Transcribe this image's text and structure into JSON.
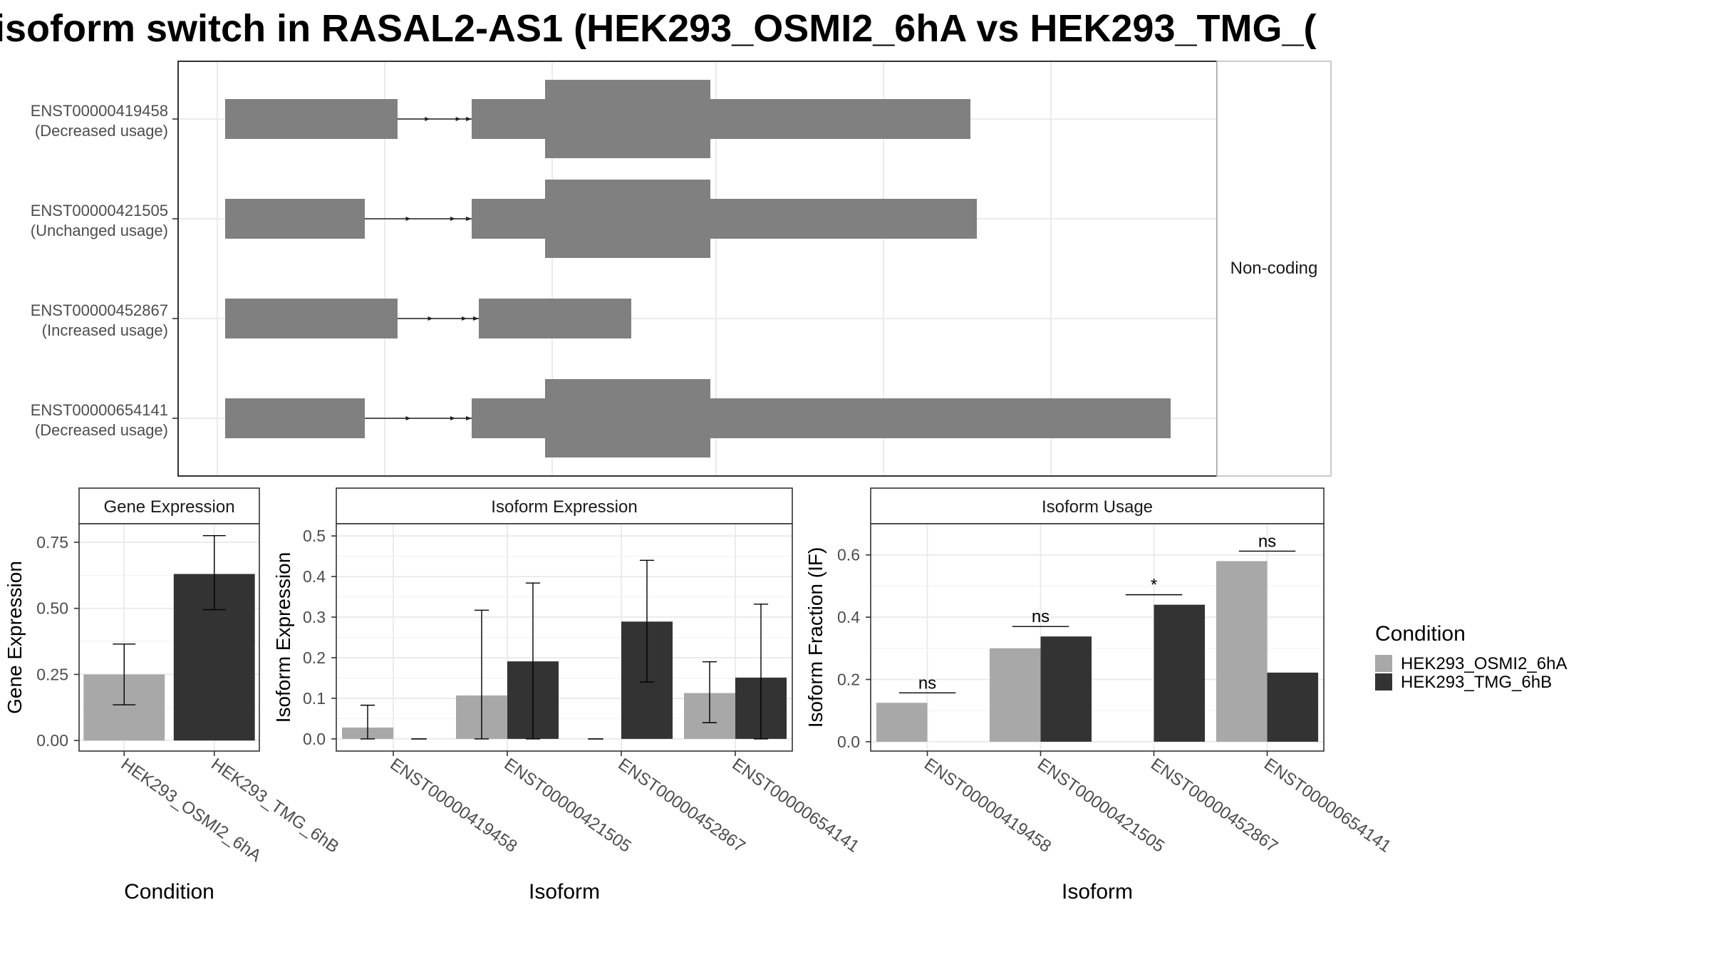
{
  "title": "isoform switch in RASAL2-AS1 (HEK293_OSMI2_6hA vs HEK293_TMG_(",
  "colors": {
    "condition_a": "#a8a8a8",
    "condition_b": "#333333",
    "transcript": "#808080",
    "grid": "#ebebeb",
    "panel_border": "#333333",
    "strip_bg": "#ffffff"
  },
  "chart_data": [
    {
      "type": "gene-structure",
      "transcripts": [
        {
          "id": "ENST00000419458",
          "usage": "(Decreased usage)"
        },
        {
          "id": "ENST00000421505",
          "usage": "(Unchanged usage)"
        },
        {
          "id": "ENST00000452867",
          "usage": "(Increased usage)"
        },
        {
          "id": "ENST00000654141",
          "usage": "(Decreased usage)"
        }
      ],
      "facet_label": "Non-coding"
    },
    {
      "type": "bar",
      "title": "Gene Expression",
      "xlabel": "Condition",
      "ylabel": "Gene Expression",
      "categories": [
        "HEK293_OSMI2_6hA",
        "HEK293_TMG_6hB"
      ],
      "values": [
        0.25,
        0.63
      ],
      "error_low": [
        0.135,
        0.495
      ],
      "error_high": [
        0.365,
        0.775
      ],
      "ylim": [
        -0.04,
        0.82
      ],
      "yticks": [
        0.0,
        0.25,
        0.5,
        0.75
      ],
      "ytick_labels": [
        "0.00",
        "0.25",
        "0.50",
        "0.75"
      ]
    },
    {
      "type": "bar",
      "title": "Isoform Expression",
      "xlabel": "Isoform",
      "ylabel": "Isoform Expression",
      "categories": [
        "ENST00000419458",
        "ENST00000421505",
        "ENST00000452867",
        "ENST00000654141"
      ],
      "series": [
        {
          "name": "HEK293_OSMI2_6hA",
          "values": [
            0.028,
            0.107,
            0.0,
            0.113
          ],
          "error_low": [
            0.0,
            0.0,
            0.0,
            0.04
          ],
          "error_high": [
            0.083,
            0.317,
            0.0,
            0.19
          ]
        },
        {
          "name": "HEK293_TMG_6hB",
          "values": [
            0.0,
            0.191,
            0.289,
            0.151
          ],
          "error_low": [
            0.0,
            0.0,
            0.14,
            0.0
          ],
          "error_high": [
            0.0,
            0.384,
            0.44,
            0.332
          ]
        }
      ],
      "ylim": [
        -0.03,
        0.53
      ],
      "yticks": [
        0.0,
        0.1,
        0.2,
        0.3,
        0.4,
        0.5
      ],
      "ytick_labels": [
        "0.0",
        "0.1",
        "0.2",
        "0.3",
        "0.4",
        "0.5"
      ]
    },
    {
      "type": "bar",
      "title": "Isoform Usage",
      "xlabel": "Isoform",
      "ylabel": "Isoform Fraction (IF)",
      "categories": [
        "ENST00000419458",
        "ENST00000421505",
        "ENST00000452867",
        "ENST00000654141"
      ],
      "series": [
        {
          "name": "HEK293_OSMI2_6hA",
          "values": [
            0.125,
            0.3,
            0.0,
            0.58
          ]
        },
        {
          "name": "HEK293_TMG_6hB",
          "values": [
            0.0,
            0.338,
            0.44,
            0.222
          ]
        }
      ],
      "significance": [
        "ns",
        "ns",
        "*",
        "ns"
      ],
      "ylim": [
        -0.03,
        0.7
      ],
      "yticks": [
        0.0,
        0.2,
        0.4,
        0.6
      ],
      "ytick_labels": [
        "0.0",
        "0.2",
        "0.4",
        "0.6"
      ]
    }
  ],
  "legend": {
    "title": "Condition",
    "entries": [
      "HEK293_OSMI2_6hA",
      "HEK293_TMG_6hB"
    ]
  }
}
